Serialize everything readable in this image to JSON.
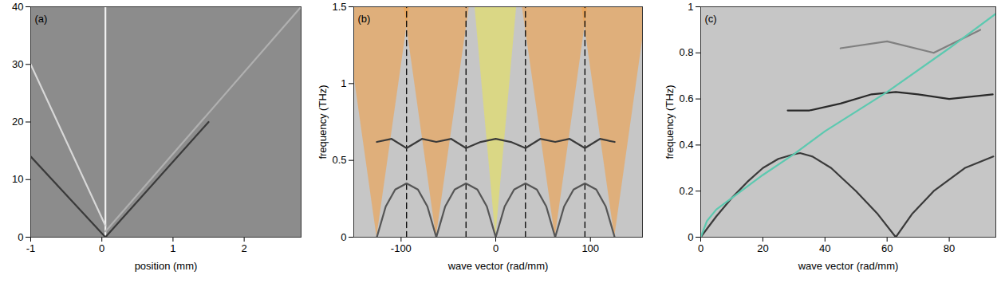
{
  "chart_data": [
    {
      "type": "line",
      "title": "(a)",
      "x_label": "position (mm)",
      "xlim": [
        -1,
        2.8
      ],
      "xticks": [
        -1,
        0,
        1,
        2
      ],
      "ylim": [
        0,
        40
      ],
      "yticks": [
        0,
        10,
        20,
        30,
        40
      ],
      "series": [
        {
          "color": "#f2f2f2",
          "x": [
            0.05,
            0.05
          ],
          "y": [
            0,
            40
          ]
        },
        {
          "color": "#3a3a3a",
          "x": [
            0.05,
            -1
          ],
          "y": [
            0,
            14
          ]
        },
        {
          "color": "#d8d8d8",
          "x": [
            0.05,
            -1
          ],
          "y": [
            2,
            30
          ]
        },
        {
          "color": "#3a3a3a",
          "x": [
            0.05,
            1.5
          ],
          "y": [
            0,
            20
          ]
        },
        {
          "color": "#b0b0b0",
          "x": [
            0.05,
            2.8
          ],
          "y": [
            1,
            40
          ]
        }
      ]
    },
    {
      "type": "line",
      "title": "(b)",
      "x_label": "wave vector (rad/mm)",
      "y_label": "frequency (THz)",
      "xlim": [
        -150,
        155
      ],
      "xticks": [
        -100,
        0,
        100
      ],
      "ylim": [
        0,
        1.5
      ],
      "yticks": [
        0,
        0.5,
        1,
        1.5
      ],
      "regions": [
        {
          "color": "#e8e25a",
          "y": [
            0,
            1.5
          ],
          "x_left": [
            0,
            -22
          ],
          "x_right": [
            0,
            22
          ]
        },
        {
          "color": "#f0a04a",
          "y": [
            0,
            1.5
          ],
          "x_left": [
            -62.8,
            -97
          ],
          "x_right": [
            -62.8,
            -28
          ]
        },
        {
          "color": "#f0a04a",
          "y": [
            0,
            1.5
          ],
          "x_left": [
            62.8,
            28
          ],
          "x_right": [
            62.8,
            97
          ]
        },
        {
          "color": "#f0a04a",
          "y": [
            0,
            1.5
          ],
          "x_left": [
            -125.6,
            -160
          ],
          "x_right": [
            -125.6,
            -91
          ]
        },
        {
          "color": "#f0a04a",
          "y": [
            0,
            1.5
          ],
          "x_left": [
            125.6,
            91
          ],
          "x_right": [
            125.6,
            160
          ]
        }
      ],
      "series": [
        {
          "color": "#000000",
          "line_style": "dashed",
          "x": [
            -94.2,
            -94.2
          ],
          "y": [
            0,
            1.5
          ]
        },
        {
          "color": "#000000",
          "line_style": "dashed",
          "x": [
            -31.4,
            -31.4
          ],
          "y": [
            0,
            1.5
          ]
        },
        {
          "color": "#000000",
          "line_style": "dashed",
          "x": [
            31.4,
            31.4
          ],
          "y": [
            0,
            1.5
          ]
        },
        {
          "color": "#000000",
          "line_style": "dashed",
          "x": [
            94.2,
            94.2
          ],
          "y": [
            0,
            1.5
          ]
        },
        {
          "color": "#555555",
          "x": [
            -125.6,
            -116.2,
            -106.2,
            -94.2,
            -82.2,
            -72.2,
            -62.8,
            -53.4,
            -43.4,
            -31.4,
            -19.4,
            -9.4,
            0,
            9.4,
            19.4,
            31.4,
            43.4,
            53.4,
            62.8,
            72.2,
            82.2,
            94.2,
            106.2,
            116.2,
            125.6
          ],
          "y": [
            0,
            0.2,
            0.31,
            0.35,
            0.31,
            0.2,
            0,
            0.2,
            0.31,
            0.35,
            0.31,
            0.2,
            0,
            0.2,
            0.31,
            0.35,
            0.31,
            0.2,
            0,
            0.2,
            0.31,
            0.35,
            0.31,
            0.2,
            0
          ]
        },
        {
          "color": "#3a3a3a",
          "x": [
            -125.6,
            -110,
            -94.2,
            -78,
            -62.8,
            -47,
            -31.4,
            -16,
            0,
            16,
            31.4,
            47,
            62.8,
            78,
            94.2,
            110,
            125.6
          ],
          "y": [
            0.62,
            0.64,
            0.58,
            0.64,
            0.62,
            0.64,
            0.58,
            0.62,
            0.64,
            0.62,
            0.58,
            0.64,
            0.62,
            0.64,
            0.58,
            0.64,
            0.62
          ]
        }
      ]
    },
    {
      "type": "line",
      "title": "(c)",
      "x_label": "wave vector (rad/mm)",
      "y_label": "frequency (THz)",
      "xlim": [
        0,
        95
      ],
      "xticks": [
        0,
        20,
        40,
        60,
        80
      ],
      "ylim": [
        0,
        1
      ],
      "yticks": [
        0,
        0.2,
        0.4,
        0.6,
        0.8,
        1
      ],
      "series": [
        {
          "color": "#3a3a3a",
          "x": [
            0,
            5,
            10,
            15,
            20,
            25,
            30,
            32,
            36,
            42,
            50,
            57,
            62.8,
            68,
            75,
            85,
            94.2
          ],
          "y": [
            0,
            0.09,
            0.17,
            0.24,
            0.3,
            0.34,
            0.36,
            0.365,
            0.35,
            0.3,
            0.2,
            0.1,
            0,
            0.1,
            0.2,
            0.3,
            0.35
          ]
        },
        {
          "color": "#2a2a2a",
          "x": [
            28,
            35,
            45,
            55,
            62.8,
            70,
            80,
            94
          ],
          "y": [
            0.55,
            0.55,
            0.58,
            0.62,
            0.63,
            0.62,
            0.6,
            0.62
          ]
        },
        {
          "color": "#808080",
          "x": [
            45,
            60,
            75,
            90
          ],
          "y": [
            0.82,
            0.85,
            0.8,
            0.9
          ]
        },
        {
          "color": "#5cc9b0",
          "x": [
            0,
            2,
            5,
            10,
            20,
            30,
            40,
            60,
            80,
            95
          ],
          "y": [
            0,
            0.07,
            0.12,
            0.17,
            0.27,
            0.36,
            0.46,
            0.63,
            0.82,
            0.97
          ]
        }
      ]
    }
  ]
}
